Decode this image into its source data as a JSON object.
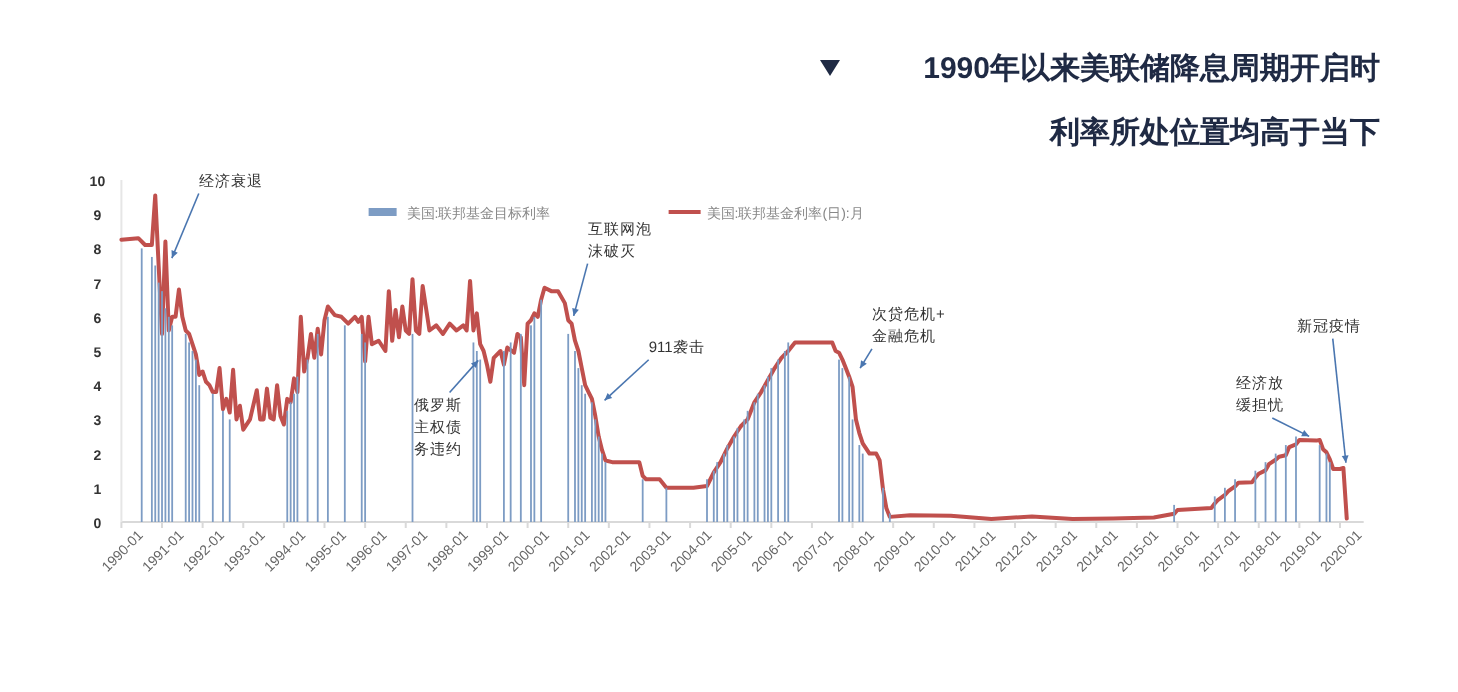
{
  "chart_data": {
    "type": "line",
    "title": "1990年以来美联储降息周期开启时",
    "subtitle": "利率所处位置均高于当下",
    "xlim": [
      "1990-01",
      "2020-08"
    ],
    "ylim": [
      0,
      10
    ],
    "yticks": [
      0,
      1,
      2,
      3,
      4,
      5,
      6,
      7,
      8,
      9,
      10
    ],
    "xticks": [
      "1990-01",
      "1991-01",
      "1992-01",
      "1993-01",
      "1994-01",
      "1995-01",
      "1996-01",
      "1997-01",
      "1998-01",
      "1999-01",
      "2000-01",
      "2001-01",
      "2002-01",
      "2003-01",
      "2004-01",
      "2005-01",
      "2006-01",
      "2007-01",
      "2008-01",
      "2009-01",
      "2010-01",
      "2011-01",
      "2012-01",
      "2013-01",
      "2014-01",
      "2015-01",
      "2016-01",
      "2017-01",
      "2018-01",
      "2019-01",
      "2020-01"
    ],
    "legend": "top",
    "grid": false,
    "series": [
      {
        "name": "美国:联邦基金目标利率",
        "type": "bar",
        "color": "#7d9cc4",
        "x": [
          "1990-07",
          "1990-10",
          "1990-11",
          "1990-12",
          "1991-01",
          "1991-02",
          "1991-03",
          "1991-04",
          "1991-08",
          "1991-09",
          "1991-10",
          "1991-11",
          "1991-12",
          "1992-04",
          "1992-07",
          "1992-09",
          "1994-02",
          "1994-03",
          "1994-04",
          "1994-05",
          "1994-08",
          "1994-11",
          "1995-02",
          "1995-07",
          "1995-12",
          "1996-01",
          "1997-03",
          "1998-09",
          "1998-10",
          "1998-11",
          "1999-06",
          "1999-08",
          "1999-11",
          "2000-02",
          "2000-03",
          "2000-05",
          "2001-01",
          "2001-03",
          "2001-04",
          "2001-05",
          "2001-06",
          "2001-08",
          "2001-09",
          "2001-10",
          "2001-11",
          "2001-12",
          "2002-11",
          "2003-06",
          "2004-06",
          "2004-08",
          "2004-09",
          "2004-11",
          "2004-12",
          "2005-02",
          "2005-03",
          "2005-05",
          "2005-06",
          "2005-08",
          "2005-09",
          "2005-11",
          "2005-12",
          "2006-01",
          "2006-03",
          "2006-05",
          "2006-06",
          "2007-09",
          "2007-10",
          "2007-12",
          "2008-01",
          "2008-03",
          "2008-04",
          "2008-10",
          "2008-12",
          "2015-12",
          "2016-12",
          "2017-03",
          "2017-06",
          "2017-12",
          "2018-03",
          "2018-06",
          "2018-09",
          "2018-12",
          "2019-07",
          "2019-09",
          "2019-10"
        ],
        "values": [
          8.0,
          7.75,
          7.5,
          7.0,
          6.75,
          6.25,
          6.0,
          5.75,
          5.5,
          5.25,
          5.0,
          4.75,
          4.0,
          3.75,
          3.25,
          3.0,
          3.25,
          3.5,
          3.75,
          4.25,
          4.75,
          5.5,
          6.0,
          5.75,
          5.5,
          5.25,
          5.5,
          5.25,
          5.0,
          4.75,
          5.0,
          5.25,
          5.5,
          5.75,
          6.0,
          6.5,
          5.5,
          5.0,
          4.5,
          4.0,
          3.75,
          3.5,
          3.0,
          2.5,
          2.0,
          1.75,
          1.25,
          1.0,
          1.25,
          1.5,
          1.75,
          2.0,
          2.25,
          2.5,
          2.75,
          3.0,
          3.25,
          3.5,
          3.75,
          4.0,
          4.25,
          4.5,
          4.75,
          5.0,
          5.25,
          4.75,
          4.5,
          4.25,
          3.0,
          2.25,
          2.0,
          1.0,
          0.25,
          0.5,
          0.75,
          1.0,
          1.25,
          1.5,
          1.75,
          2.0,
          2.25,
          2.5,
          2.25,
          2.0,
          1.75
        ]
      },
      {
        "name": "美国:联邦基金利率(日):月",
        "color": "#c0504d",
        "x": [
          "1990-01",
          "1990-06",
          "1990-08",
          "1990-10",
          "1990-11",
          "1990-12",
          "1991-01",
          "1991-02",
          "1991-03",
          "1991-04",
          "1991-05",
          "1991-06",
          "1991-07",
          "1991-08",
          "1991-09",
          "1991-10",
          "1991-11",
          "1991-12",
          "1992-01",
          "1992-02",
          "1992-03",
          "1992-04",
          "1992-05",
          "1992-06",
          "1992-07",
          "1992-08",
          "1992-09",
          "1992-10",
          "1992-11",
          "1992-12",
          "1993-01",
          "1993-03",
          "1993-05",
          "1993-06",
          "1993-07",
          "1993-08",
          "1993-09",
          "1993-10",
          "1993-11",
          "1993-12",
          "1994-01",
          "1994-02",
          "1994-03",
          "1994-04",
          "1994-05",
          "1994-06",
          "1994-07",
          "1994-08",
          "1994-09",
          "1994-10",
          "1994-11",
          "1994-12",
          "1995-01",
          "1995-02",
          "1995-04",
          "1995-06",
          "1995-08",
          "1995-10",
          "1995-11",
          "1995-12",
          "1996-01",
          "1996-02",
          "1996-03",
          "1996-05",
          "1996-07",
          "1996-08",
          "1996-09",
          "1996-10",
          "1996-11",
          "1996-12",
          "1997-01",
          "1997-02",
          "1997-03",
          "1997-04",
          "1997-05",
          "1997-06",
          "1997-08",
          "1997-10",
          "1997-12",
          "1998-02",
          "1998-04",
          "1998-06",
          "1998-07",
          "1998-08",
          "1998-09",
          "1998-10",
          "1998-11",
          "1998-12",
          "1999-01",
          "1999-02",
          "1999-03",
          "1999-05",
          "1999-06",
          "1999-07",
          "1999-09",
          "1999-10",
          "1999-11",
          "1999-12",
          "2000-01",
          "2000-02",
          "2000-03",
          "2000-04",
          "2000-05",
          "2000-06",
          "2000-08",
          "2000-10",
          "2000-12",
          "2001-01",
          "2001-02",
          "2001-03",
          "2001-04",
          "2001-05",
          "2001-06",
          "2001-07",
          "2001-08",
          "2001-09",
          "2001-10",
          "2001-11",
          "2001-12",
          "2002-02",
          "2002-06",
          "2002-10",
          "2002-11",
          "2002-12",
          "2003-04",
          "2003-06",
          "2003-08",
          "2003-12",
          "2004-02",
          "2004-06",
          "2004-07",
          "2004-08",
          "2004-10",
          "2004-12",
          "2005-02",
          "2005-04",
          "2005-06",
          "2005-08",
          "2005-10",
          "2005-12",
          "2006-02",
          "2006-04",
          "2006-06",
          "2006-08",
          "2007-01",
          "2007-04",
          "2007-07",
          "2007-08",
          "2007-09",
          "2007-10",
          "2007-11",
          "2007-12",
          "2008-01",
          "2008-02",
          "2008-03",
          "2008-04",
          "2008-06",
          "2008-08",
          "2008-09",
          "2008-10",
          "2008-11",
          "2008-12",
          "2009-06",
          "2010-06",
          "2011-06",
          "2012-06",
          "2013-06",
          "2014-06",
          "2015-06",
          "2015-12",
          "2016-01",
          "2016-06",
          "2016-11",
          "2016-12",
          "2017-01",
          "2017-03",
          "2017-04",
          "2017-06",
          "2017-07",
          "2017-11",
          "2017-12",
          "2018-01",
          "2018-03",
          "2018-04",
          "2018-06",
          "2018-07",
          "2018-09",
          "2018-10",
          "2018-12",
          "2019-01",
          "2019-06",
          "2019-07",
          "2019-08",
          "2019-09",
          "2019-10",
          "2019-11",
          "2020-01",
          "2020-02",
          "2020-03"
        ],
        "values": [
          8.25,
          8.3,
          8.1,
          8.1,
          9.55,
          7.5,
          5.5,
          8.2,
          5.6,
          6.0,
          6.0,
          6.8,
          6.0,
          5.6,
          5.5,
          5.2,
          4.9,
          4.3,
          4.4,
          4.1,
          4.0,
          3.8,
          3.8,
          4.5,
          3.3,
          3.6,
          3.2,
          4.45,
          3.0,
          3.4,
          2.7,
          3.0,
          3.85,
          3.0,
          3.0,
          3.9,
          3.05,
          3.0,
          4.0,
          3.1,
          2.85,
          3.6,
          3.5,
          4.2,
          3.8,
          6.0,
          4.4,
          4.8,
          5.5,
          4.8,
          5.65,
          4.9,
          5.9,
          6.3,
          6.05,
          6.0,
          5.8,
          6.0,
          5.85,
          6.0,
          4.7,
          6.0,
          5.2,
          5.3,
          5.0,
          6.75,
          5.3,
          6.2,
          5.4,
          6.3,
          5.6,
          5.5,
          7.1,
          5.6,
          5.5,
          6.9,
          5.6,
          5.75,
          5.5,
          5.8,
          5.6,
          5.75,
          5.6,
          7.05,
          5.6,
          6.1,
          5.2,
          5.0,
          4.6,
          4.1,
          4.8,
          5.0,
          4.6,
          5.1,
          4.95,
          5.5,
          5.4,
          4.0,
          5.8,
          5.9,
          6.1,
          6.0,
          6.5,
          6.85,
          6.75,
          6.75,
          6.4,
          5.9,
          5.8,
          5.3,
          5.0,
          4.5,
          4.0,
          3.8,
          3.6,
          3.1,
          2.5,
          2.1,
          1.8,
          1.75,
          1.75,
          1.75,
          1.35,
          1.25,
          1.25,
          1.0,
          1.0,
          1.0,
          1.0,
          1.05,
          1.25,
          1.45,
          1.75,
          2.15,
          2.5,
          2.8,
          3.0,
          3.5,
          3.8,
          4.15,
          4.5,
          4.8,
          5.0,
          5.25,
          5.25,
          5.25,
          5.25,
          5.0,
          4.95,
          4.75,
          4.5,
          4.25,
          3.95,
          3.0,
          2.6,
          2.3,
          2.0,
          2.0,
          1.8,
          0.95,
          0.4,
          0.15,
          0.2,
          0.18,
          0.09,
          0.16,
          0.09,
          0.1,
          0.13,
          0.24,
          0.35,
          0.38,
          0.41,
          0.54,
          0.65,
          0.79,
          0.9,
          1.04,
          1.15,
          1.16,
          1.3,
          1.41,
          1.51,
          1.69,
          1.82,
          1.91,
          1.95,
          2.19,
          2.27,
          2.4,
          2.38,
          2.4,
          2.13,
          2.04,
          1.83,
          1.55,
          1.55,
          1.58,
          0.1
        ]
      }
    ],
    "annotations": [
      {
        "text": "经济衰退",
        "x": "1991-03",
        "y": 7.5
      },
      {
        "text": "俄罗斯主权债务违约",
        "x": "1998-12",
        "y": 4.9
      },
      {
        "text": "互联网泡沫破灭",
        "x": "2001-02",
        "y": 5.8
      },
      {
        "text": "911袭击",
        "x": "2001-10",
        "y": 3.4
      },
      {
        "text": "次贷危机+金融危机",
        "x": "2008-02",
        "y": 4.3
      },
      {
        "text": "经济放缓担忧",
        "x": "2019-06",
        "y": 2.4
      },
      {
        "text": "新冠疫情",
        "x": "2020-03",
        "y": 1.5
      }
    ]
  }
}
